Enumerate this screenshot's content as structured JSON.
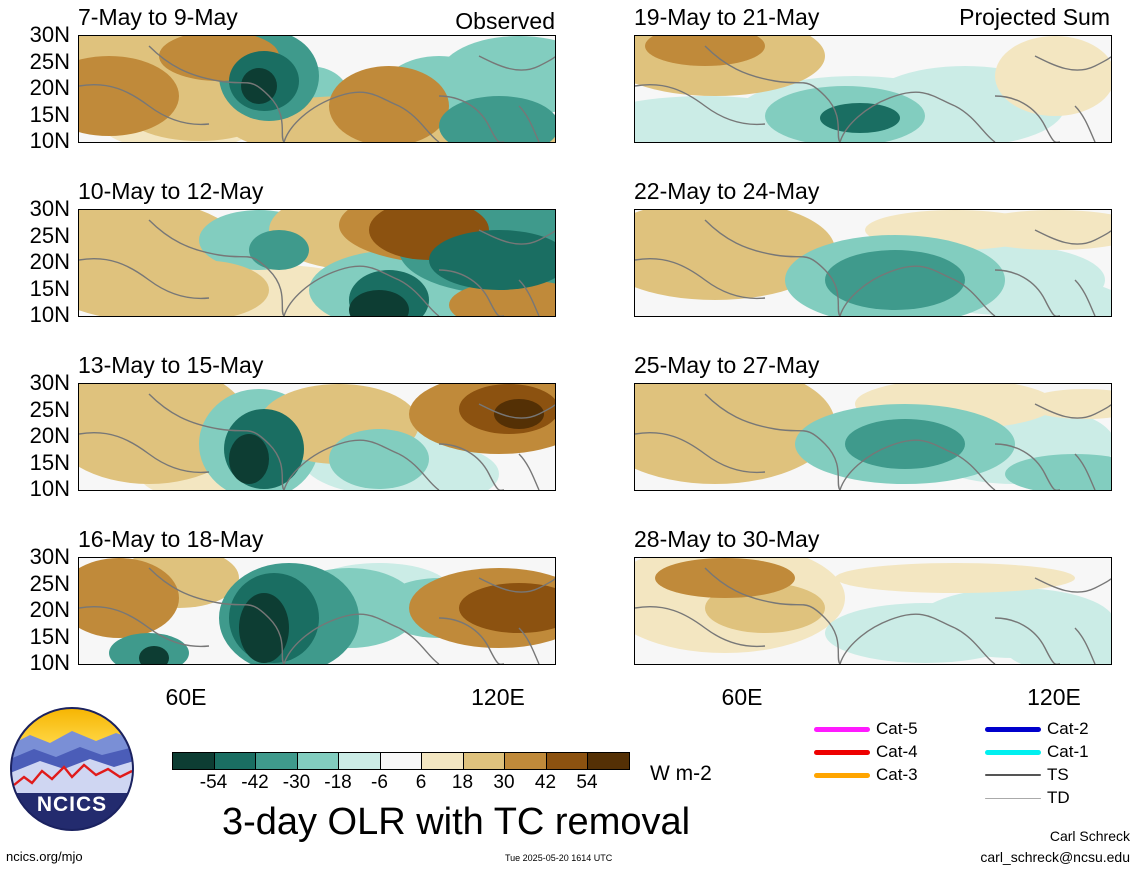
{
  "panels": {
    "left": [
      {
        "title": "7-May to 9-May",
        "tag": "Observed"
      },
      {
        "title": "10-May to 12-May",
        "tag": ""
      },
      {
        "title": "13-May to 15-May",
        "tag": ""
      },
      {
        "title": "16-May to 18-May",
        "tag": ""
      }
    ],
    "right": [
      {
        "title": "19-May to 21-May",
        "tag": "Projected Sum"
      },
      {
        "title": "22-May to 24-May",
        "tag": ""
      },
      {
        "title": "25-May to 27-May",
        "tag": ""
      },
      {
        "title": "28-May to 30-May",
        "tag": ""
      }
    ]
  },
  "axes": {
    "y_ticks": [
      "30N",
      "25N",
      "20N",
      "15N",
      "10N"
    ],
    "x_ticks": [
      "60E",
      "120E"
    ]
  },
  "colorbar": {
    "colors": [
      "#0d3d33",
      "#1a6e62",
      "#3f9a8c",
      "#82cdbf",
      "#cbece6",
      "#f7f7f7",
      "#f3e6c1",
      "#dfc27d",
      "#c08a3a",
      "#8c5210",
      "#543005"
    ],
    "ticks": [
      "-54",
      "-42",
      "-30",
      "-18",
      "-6",
      "6",
      "18",
      "30",
      "42",
      "54"
    ],
    "unit": "W m-2"
  },
  "title": "3-day OLR with TC removal",
  "logo": {
    "text": "NCICS"
  },
  "legend": [
    {
      "label": "Cat-5",
      "color": "#ff1aff"
    },
    {
      "label": "Cat-4",
      "color": "#ee0000"
    },
    {
      "label": "Cat-3",
      "color": "#ffa500"
    },
    {
      "label": "Cat-2",
      "color": "#0000cc"
    },
    {
      "label": "Cat-1",
      "color": "#00f0f0"
    },
    {
      "label": "TS",
      "color": "#555555"
    },
    {
      "label": "TD",
      "color": "#aaaaaa"
    }
  ],
  "footer": {
    "url": "ncics.org/mjo",
    "timestamp": "Tue 2025-05-20 1614 UTC",
    "author": "Carl Schreck",
    "email": "carl_schreck@ncsu.edu"
  }
}
